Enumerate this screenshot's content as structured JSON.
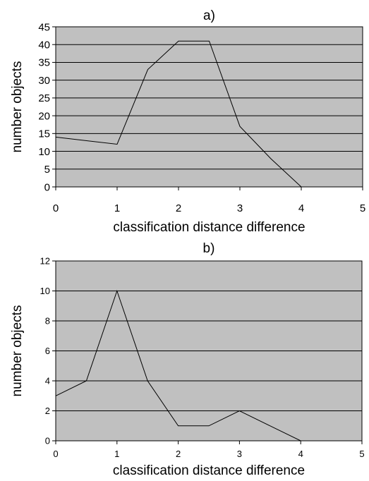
{
  "chart_data": [
    {
      "type": "line",
      "title": "a)",
      "xlabel": "classification distance difference",
      "ylabel": "number objects",
      "xlim": [
        0,
        5
      ],
      "ylim": [
        0,
        45
      ],
      "xticks": [
        "0",
        "1",
        "2",
        "3",
        "4",
        "5"
      ],
      "yticks": [
        "0",
        "5",
        "10",
        "15",
        "20",
        "25",
        "30",
        "35",
        "40",
        "45"
      ],
      "grid": "horizontal",
      "plot_background": "#c0c0c0",
      "line_color": "#000000",
      "x": [
        0,
        1,
        1.5,
        2,
        2.5,
        3,
        3.5,
        4,
        4.5
      ],
      "y": [
        14,
        12,
        33,
        41,
        41,
        17,
        8,
        0,
        0
      ]
    },
    {
      "type": "line",
      "title": "b)",
      "xlabel": "classification distance difference",
      "ylabel": "number objects",
      "xlim": [
        0,
        5
      ],
      "ylim": [
        0,
        12
      ],
      "xticks": [
        "0",
        "1",
        "2",
        "3",
        "4",
        "5"
      ],
      "yticks": [
        "0",
        "2",
        "4",
        "6",
        "8",
        "10",
        "12"
      ],
      "grid": "horizontal",
      "plot_background": "#c0c0c0",
      "line_color": "#000000",
      "x": [
        0,
        0.5,
        1,
        1.5,
        2,
        2.5,
        3,
        3.5,
        4,
        4.5
      ],
      "y": [
        3,
        4,
        10,
        4,
        1,
        1,
        2,
        1,
        0,
        0
      ]
    }
  ]
}
